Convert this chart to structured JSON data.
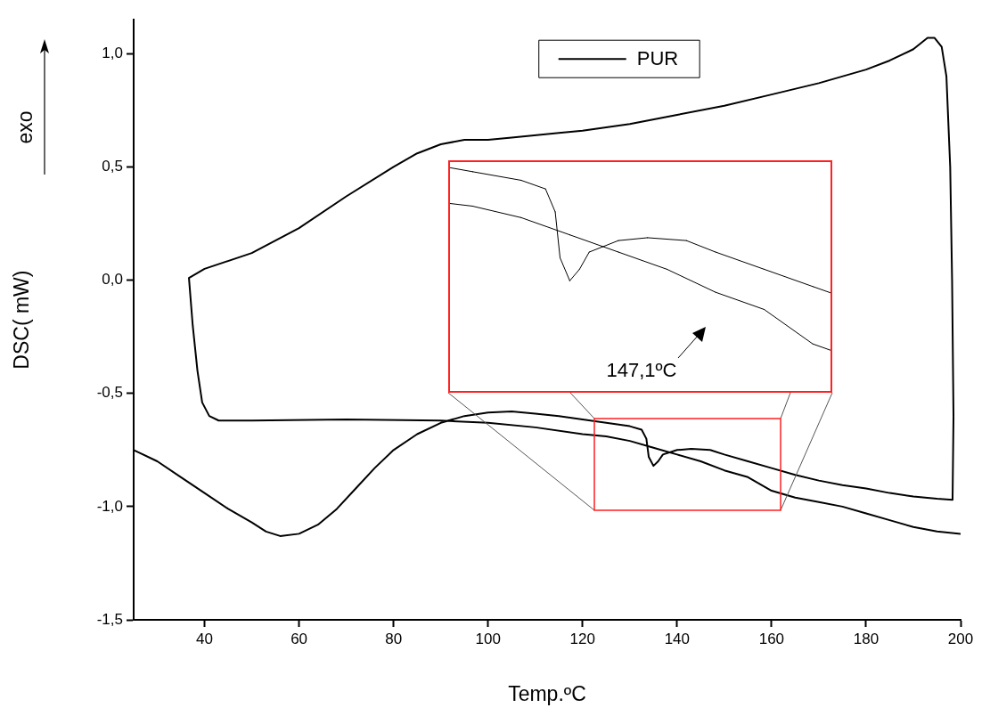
{
  "chart_data": {
    "type": "line",
    "xlabel": "Temp.ºC",
    "ylabel": "DSC( mW)",
    "xlim": [
      25,
      200
    ],
    "ylim": [
      -1.5,
      1.15
    ],
    "xticks": [
      40,
      60,
      80,
      100,
      120,
      140,
      160,
      180,
      200
    ],
    "yticks": [
      {
        "value": -1.5,
        "label": "-1,5"
      },
      {
        "value": -1,
        "label": "-1,0"
      },
      {
        "value": -0.5,
        "label": "-0,5"
      },
      {
        "value": 0,
        "label": "0,0"
      },
      {
        "value": 0.5,
        "label": "0,5"
      },
      {
        "value": 1,
        "label": "1,0"
      }
    ],
    "grid": false,
    "legend": "top",
    "annotations": [
      "exo",
      "147,1ºC"
    ],
    "series": [
      {
        "name": "PUR",
        "color": "#000000",
        "x": [
          25,
          30,
          35,
          40,
          45,
          50,
          53,
          56,
          60,
          64,
          68,
          72,
          76,
          80,
          85,
          90,
          95,
          100,
          105,
          110,
          115,
          120,
          125,
          130,
          132.5,
          133.5,
          134,
          135,
          136,
          137,
          140,
          143,
          147,
          150,
          155,
          160,
          165,
          170,
          175,
          180,
          185,
          190,
          195,
          198.3,
          198.5,
          198.2,
          197.8,
          197,
          196,
          194.5,
          193,
          190,
          185,
          180,
          170,
          160,
          150,
          140,
          130,
          120,
          115,
          105,
          100,
          95,
          90,
          85,
          80,
          70,
          60,
          50,
          40,
          36.7,
          37.5,
          38.5,
          39.5,
          41,
          43,
          50,
          70,
          90,
          100,
          110,
          120,
          125,
          130,
          135,
          140,
          145,
          150,
          155,
          160,
          165,
          170,
          175,
          180,
          185,
          190,
          195,
          200
        ],
        "values": [
          -0.75,
          -0.8,
          -0.87,
          -0.94,
          -1.01,
          -1.07,
          -1.11,
          -1.13,
          -1.12,
          -1.08,
          -1.01,
          -0.92,
          -0.83,
          -0.75,
          -0.68,
          -0.63,
          -0.6,
          -0.585,
          -0.58,
          -0.59,
          -0.6,
          -0.615,
          -0.63,
          -0.645,
          -0.66,
          -0.7,
          -0.78,
          -0.82,
          -0.8,
          -0.77,
          -0.75,
          -0.745,
          -0.75,
          -0.77,
          -0.8,
          -0.83,
          -0.86,
          -0.885,
          -0.905,
          -0.92,
          -0.94,
          -0.955,
          -0.965,
          -0.97,
          -0.6,
          0,
          0.5,
          0.9,
          1.03,
          1.07,
          1.07,
          1.02,
          0.97,
          0.93,
          0.87,
          0.82,
          0.77,
          0.73,
          0.69,
          0.66,
          0.65,
          0.63,
          0.62,
          0.62,
          0.6,
          0.56,
          0.5,
          0.37,
          0.23,
          0.12,
          0.05,
          0.01,
          -0.2,
          -0.4,
          -0.54,
          -0.6,
          -0.62,
          -0.62,
          -0.615,
          -0.62,
          -0.63,
          -0.65,
          -0.68,
          -0.69,
          -0.71,
          -0.74,
          -0.77,
          -0.8,
          -0.84,
          -0.87,
          -0.93,
          -0.96,
          -0.98,
          -1.0,
          -1.03,
          -1.06,
          -1.09,
          -1.11,
          -1.12
        ]
      }
    ]
  }
}
